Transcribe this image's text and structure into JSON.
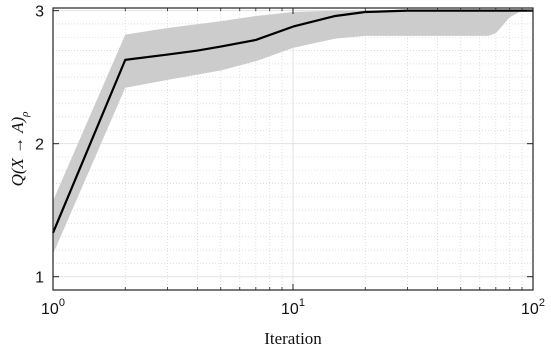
{
  "chart_data": {
    "type": "line",
    "title": "",
    "xlabel": "Iteration",
    "ylabel": "Q(X → A)",
    "ylabel_subscript": "ρ",
    "x_scale": "log",
    "xlim": [
      1,
      100
    ],
    "ylim": [
      0.9,
      3.02
    ],
    "x_ticks": [
      {
        "base": "10",
        "exp": "0",
        "value": 1
      },
      {
        "base": "10",
        "exp": "1",
        "value": 10
      },
      {
        "base": "10",
        "exp": "2",
        "value": 100
      }
    ],
    "y_ticks": [
      {
        "label": "1",
        "value": 1
      },
      {
        "label": "2",
        "value": 2
      },
      {
        "label": "3",
        "value": 3
      }
    ],
    "grid": true,
    "minor_grid": true,
    "legend": "none",
    "series": [
      {
        "color": "#000000",
        "x": [
          1,
          2,
          3,
          4,
          5,
          7,
          10,
          15,
          20,
          30,
          50,
          70,
          100
        ],
        "y": [
          1.33,
          2.63,
          2.67,
          2.7,
          2.73,
          2.78,
          2.88,
          2.96,
          2.99,
          3.0,
          3.0,
          3.0,
          3.0
        ]
      }
    ],
    "band": {
      "color": "#cccccc",
      "x": [
        1,
        2,
        3,
        5,
        7,
        10,
        15,
        20,
        30,
        50,
        65,
        70,
        80,
        90,
        100
      ],
      "upper": [
        1.57,
        2.82,
        2.87,
        2.92,
        2.96,
        2.99,
        3.0,
        3.0,
        3.0,
        3.0,
        3.0,
        3.0,
        3.0,
        3.0,
        3.0
      ],
      "lower": [
        1.17,
        2.42,
        2.48,
        2.55,
        2.62,
        2.72,
        2.79,
        2.81,
        2.81,
        2.81,
        2.81,
        2.83,
        2.95,
        3.0,
        3.0
      ]
    }
  }
}
